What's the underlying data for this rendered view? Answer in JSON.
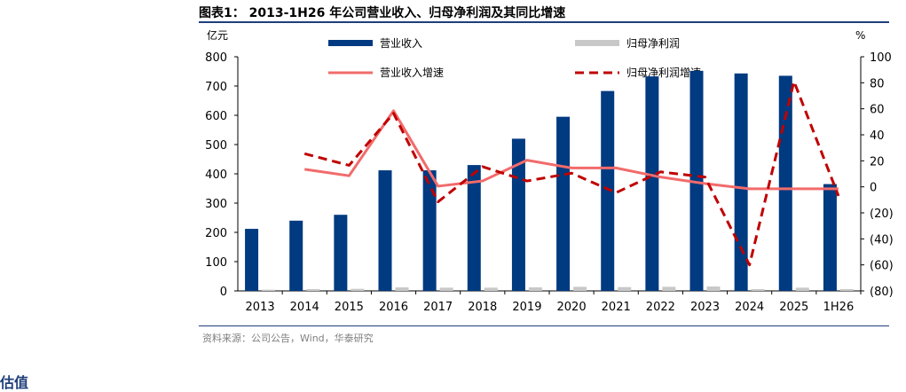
{
  "title": "图表1： 2013-1H26 年公司营业收入、归母净利润及其同比增速",
  "source": "资料来源：公司公告，Wind，华泰研究",
  "bottom_text": "估值",
  "colors": {
    "revenue": "#003a80",
    "profit": "#c8c8c8",
    "revenue_growth": "#f26b6b",
    "profit_growth": "#c00000",
    "rule": "#1f3f7a"
  },
  "chart_data": {
    "type": "bar",
    "categories": [
      "2013",
      "2014",
      "2015",
      "2016",
      "2017",
      "2018",
      "2019",
      "2020",
      "2021",
      "2022",
      "2023",
      "2024",
      "2025",
      "1H26"
    ],
    "left_axis": {
      "unit": "亿元",
      "ylim": [
        0,
        800
      ],
      "ticks": [
        "0",
        "100",
        "200",
        "300",
        "400",
        "500",
        "600",
        "700",
        "800"
      ],
      "tick_values": [
        0,
        100,
        200,
        300,
        400,
        500,
        600,
        700,
        800
      ]
    },
    "right_axis": {
      "unit": "%",
      "ylim": [
        -80,
        100
      ],
      "ticks": [
        "(80)",
        "(60)",
        "(40)",
        "(20)",
        "0",
        "20",
        "40",
        "60",
        "80",
        "100"
      ],
      "tick_values": [
        -80,
        -60,
        -40,
        -20,
        0,
        20,
        40,
        60,
        80,
        100
      ]
    },
    "series": [
      {
        "name": "营业收入",
        "kind": "bar",
        "axis": "left",
        "values": [
          212,
          240,
          260,
          412,
          412,
          430,
          520,
          595,
          683,
          733,
          752,
          743,
          735,
          365
        ]
      },
      {
        "name": "归母净利润",
        "kind": "bar",
        "axis": "left",
        "values": [
          4,
          6,
          7,
          12,
          11,
          11,
          12,
          14,
          13,
          14,
          15,
          6,
          11,
          6
        ]
      },
      {
        "name": "营业收入增速",
        "kind": "line",
        "axis": "right",
        "values": [
          null,
          13.5,
          8.5,
          58.5,
          0.5,
          4.5,
          20.5,
          14.5,
          14.5,
          7.5,
          2.5,
          -1.5,
          -1.5,
          -1.5
        ]
      },
      {
        "name": "归母净利润增速",
        "kind": "line-dashed",
        "axis": "right",
        "values": [
          null,
          25.5,
          16.5,
          56.5,
          -11.5,
          15.5,
          4.5,
          10.5,
          -4.5,
          11.5,
          7.5,
          -60,
          81,
          -7
        ]
      }
    ],
    "legend_placement": "top"
  }
}
